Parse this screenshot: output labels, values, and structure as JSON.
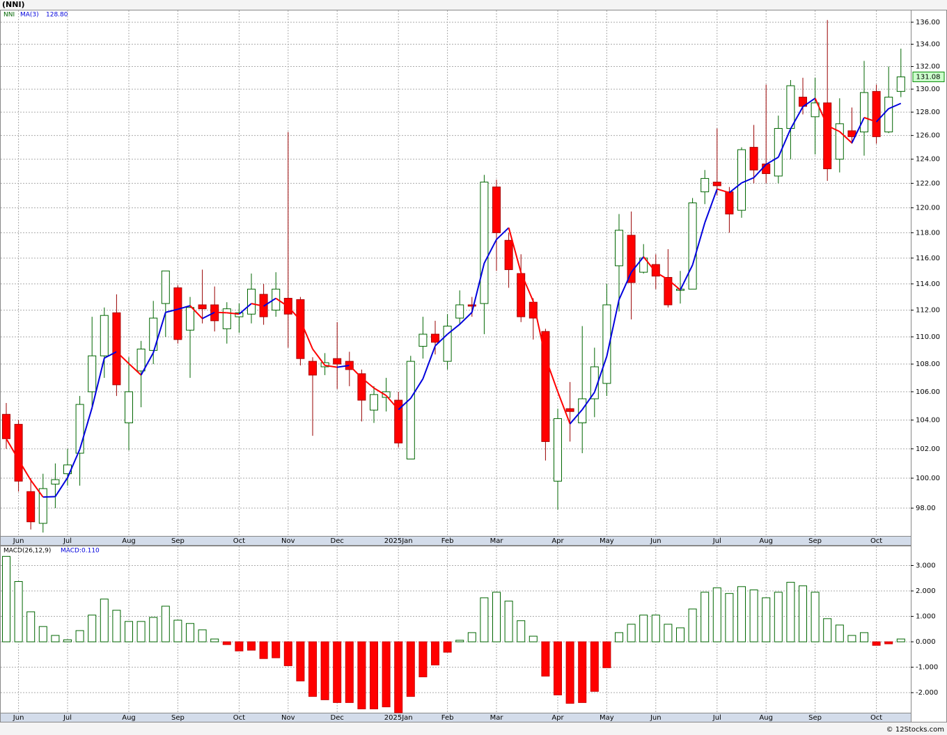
{
  "title": "(NNI)",
  "footer": "© 12Stocks.com",
  "chart_data": [
    {
      "type": "candlestick",
      "symbol": "NNI",
      "ma_name": "MA(3)",
      "ma_value_label": "128.80",
      "last_price_label": "131.08",
      "categories": [
        null,
        "Jun",
        null,
        null,
        null,
        "Jul",
        null,
        null,
        null,
        null,
        "Aug",
        null,
        null,
        null,
        "Sep",
        null,
        null,
        null,
        null,
        "Oct",
        null,
        null,
        null,
        "Nov",
        null,
        null,
        null,
        "Dec",
        null,
        null,
        null,
        null,
        "2025Jan",
        null,
        null,
        null,
        "Feb",
        null,
        null,
        null,
        "Mar",
        null,
        null,
        null,
        null,
        "Apr",
        null,
        null,
        null,
        "May",
        null,
        null,
        null,
        "Jun",
        null,
        null,
        null,
        null,
        "Jul",
        null,
        null,
        null,
        "Aug",
        null,
        null,
        null,
        "Sep",
        null,
        null,
        null,
        null,
        "Oct",
        null,
        null
      ],
      "open": [
        104.4,
        103.7,
        99.1,
        97.0,
        99.6,
        100.3,
        101.7,
        106.0,
        108.6,
        111.8,
        103.8,
        107.5,
        109.0,
        112.5,
        113.7,
        110.5,
        112.4,
        112.4,
        110.6,
        111.5,
        111.7,
        113.2,
        112.0,
        112.9,
        112.8,
        108.2,
        107.8,
        108.4,
        108.2,
        107.3,
        104.7,
        105.6,
        105.4,
        101.3,
        109.3,
        110.2,
        108.2,
        111.4,
        112.4,
        112.5,
        121.7,
        117.4,
        114.8,
        112.6,
        110.4,
        99.8,
        104.8,
        103.8,
        105.5,
        106.6,
        115.4,
        117.8,
        114.9,
        115.5,
        114.5,
        113.5,
        113.6,
        121.3,
        122.1,
        121.3,
        119.8,
        125.0,
        123.6,
        122.6,
        126.6,
        129.3,
        127.6,
        128.8,
        124.0,
        126.4,
        126.3,
        129.8,
        126.3,
        129.8
      ],
      "high": [
        105.2,
        104.0,
        100.0,
        100.3,
        101.0,
        102.0,
        105.7,
        111.5,
        112.2,
        113.2,
        108.5,
        109.7,
        112.7,
        115.0,
        113.9,
        113.0,
        115.1,
        113.8,
        112.6,
        112.5,
        114.8,
        114.0,
        114.9,
        126.3,
        113.0,
        108.5,
        108.8,
        111.1,
        108.9,
        107.6,
        106.4,
        107.0,
        106.0,
        108.6,
        111.5,
        111.2,
        111.7,
        113.5,
        113.0,
        122.7,
        122.3,
        118.0,
        116.3,
        112.9,
        110.6,
        104.8,
        106.7,
        110.8,
        109.2,
        114.0,
        119.5,
        119.7,
        117.1,
        116.3,
        116.7,
        115.0,
        120.8,
        123.1,
        126.6,
        121.7,
        125.0,
        126.9,
        130.4,
        127.7,
        130.8,
        131.0,
        131.0,
        136.2,
        129.2,
        128.4,
        132.5,
        130.4,
        132.0,
        133.6
      ],
      "low": [
        102.0,
        99.1,
        96.6,
        96.4,
        98.0,
        99.5,
        99.5,
        105.0,
        107.0,
        105.7,
        101.9,
        104.9,
        108.0,
        110.0,
        109.5,
        107.0,
        111.0,
        110.4,
        109.5,
        110.3,
        111.0,
        110.9,
        111.5,
        109.2,
        107.9,
        102.9,
        107.2,
        106.2,
        106.4,
        103.9,
        103.8,
        104.6,
        102.1,
        101.3,
        108.4,
        108.7,
        107.6,
        110.9,
        111.5,
        110.2,
        115.0,
        113.7,
        111.1,
        109.8,
        101.2,
        97.9,
        102.5,
        101.7,
        104.2,
        105.7,
        111.9,
        111.3,
        114.8,
        113.6,
        112.2,
        112.5,
        113.6,
        120.3,
        121.0,
        118.0,
        119.2,
        122.0,
        122.0,
        122.0,
        124.0,
        127.8,
        124.4,
        122.2,
        122.9,
        125.3,
        124.3,
        125.3,
        126.2,
        129.3
      ],
      "close": [
        102.7,
        99.8,
        97.1,
        99.3,
        99.9,
        100.9,
        105.1,
        108.6,
        111.6,
        106.5,
        106.0,
        109.1,
        111.4,
        115.0,
        109.8,
        112.2,
        112.1,
        111.2,
        112.1,
        111.8,
        113.6,
        111.5,
        113.6,
        111.7,
        108.4,
        107.2,
        108.1,
        108.0,
        107.6,
        105.4,
        105.8,
        106.0,
        102.4,
        108.2,
        110.2,
        109.6,
        110.8,
        112.4,
        112.3,
        122.1,
        118.0,
        115.1,
        111.5,
        111.4,
        102.5,
        104.1,
        104.6,
        105.5,
        107.8,
        112.4,
        118.2,
        114.1,
        116.0,
        114.6,
        112.4,
        113.6,
        120.4,
        122.4,
        121.8,
        119.5,
        124.8,
        123.1,
        122.8,
        126.6,
        130.3,
        128.5,
        128.8,
        123.2,
        127.0,
        125.9,
        129.7,
        125.9,
        129.3,
        131.08
      ],
      "ylim": [
        96.18,
        137.15
      ],
      "log_scale": true,
      "grid": true,
      "yticks": [
        {
          "value": 98,
          "label": "98.00"
        },
        {
          "value": 100,
          "label": "100.00"
        },
        {
          "value": 102,
          "label": "102.00"
        },
        {
          "value": 104,
          "label": "104.00"
        },
        {
          "value": 106,
          "label": "106.00"
        },
        {
          "value": 108,
          "label": "108.00"
        },
        {
          "value": 110,
          "label": "110.00"
        },
        {
          "value": 112,
          "label": "112.00"
        },
        {
          "value": 114,
          "label": "114.00"
        },
        {
          "value": 116,
          "label": "116.00"
        },
        {
          "value": 118,
          "label": "118.00"
        },
        {
          "value": 120,
          "label": "120.00"
        },
        {
          "value": 122,
          "label": "122.00"
        },
        {
          "value": 124,
          "label": "124.00"
        },
        {
          "value": 126,
          "label": "126.00"
        },
        {
          "value": 128,
          "label": "128.00"
        },
        {
          "value": 130,
          "label": "130.00"
        },
        {
          "value": 132,
          "label": "132.00"
        },
        {
          "value": 134,
          "label": "134.00"
        },
        {
          "value": 136,
          "label": "136.00"
        }
      ],
      "up_color": "#006600",
      "down_color": "#ff0000",
      "ma_up_color": "#0000dd",
      "ma_down_color": "#ff0000"
    },
    {
      "type": "bar",
      "name": "MACD(26,12,9)",
      "value_label": "MACD:0.110",
      "categories": [
        null,
        "Jun",
        null,
        null,
        null,
        "Jul",
        null,
        null,
        null,
        null,
        "Aug",
        null,
        null,
        null,
        "Sep",
        null,
        null,
        null,
        null,
        "Oct",
        null,
        null,
        null,
        "Nov",
        null,
        null,
        null,
        "Dec",
        null,
        null,
        null,
        null,
        "2025Jan",
        null,
        null,
        null,
        "Feb",
        null,
        null,
        null,
        "Mar",
        null,
        null,
        null,
        null,
        "Apr",
        null,
        null,
        null,
        "May",
        null,
        null,
        null,
        "Jun",
        null,
        null,
        null,
        null,
        "Jul",
        null,
        null,
        null,
        "Aug",
        null,
        null,
        null,
        "Sep",
        null,
        null,
        null,
        null,
        "Oct",
        null,
        null
      ],
      "values": [
        3.36,
        2.37,
        1.18,
        0.6,
        0.25,
        0.08,
        0.44,
        1.05,
        1.68,
        1.24,
        0.8,
        0.8,
        0.96,
        1.4,
        0.85,
        0.72,
        0.47,
        0.11,
        -0.11,
        -0.36,
        -0.33,
        -0.66,
        -0.63,
        -0.94,
        -1.54,
        -2.15,
        -2.28,
        -2.39,
        -2.39,
        -2.64,
        -2.64,
        -2.56,
        -2.79,
        -2.15,
        -1.38,
        -0.91,
        -0.41,
        0.06,
        0.36,
        1.73,
        1.95,
        1.6,
        0.83,
        0.22,
        -1.35,
        -2.09,
        -2.42,
        -2.39,
        -1.95,
        -1.02,
        0.36,
        0.69,
        1.05,
        1.05,
        0.69,
        0.55,
        1.29,
        1.95,
        2.12,
        1.9,
        2.17,
        2.04,
        1.73,
        1.95,
        2.34,
        2.2,
        1.95,
        0.91,
        0.66,
        0.25,
        0.36,
        -0.14,
        -0.08,
        0.11
      ],
      "ylim": [
        -2.79,
        3.78
      ],
      "grid": true,
      "yticks": [
        {
          "value": 3,
          "label": "3.000"
        },
        {
          "value": 2,
          "label": "2.000"
        },
        {
          "value": 1,
          "label": "1.000"
        },
        {
          "value": 0,
          "label": "0.000"
        },
        {
          "value": -1,
          "label": "-1.000"
        },
        {
          "value": -2,
          "label": "-2.000"
        }
      ],
      "up_color": "#006600",
      "down_color": "#ff0000"
    }
  ]
}
